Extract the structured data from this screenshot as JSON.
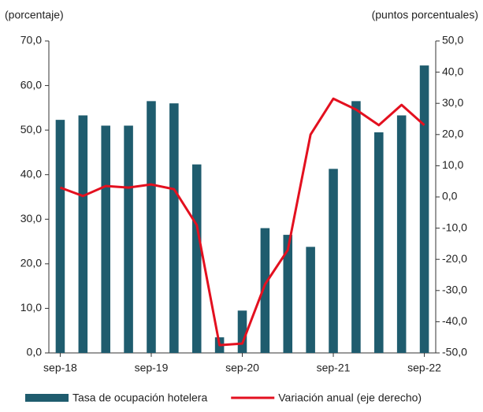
{
  "chart_data": {
    "type": "bar_line",
    "y_label": "(porcentaje)",
    "y2_label": "(puntos porcentuales)",
    "categories": [
      "sep-18",
      null,
      null,
      null,
      "sep-19",
      null,
      null,
      null,
      "sep-20",
      null,
      null,
      null,
      "sep-21",
      null,
      null,
      null,
      "sep-22"
    ],
    "series": [
      {
        "name": "Tasa de ocupación hotelera",
        "type": "bar",
        "color": "#1f5c6e",
        "values": [
          52.3,
          53.3,
          51.0,
          51.0,
          56.5,
          56.0,
          42.3,
          3.5,
          9.5,
          28.0,
          26.5,
          23.8,
          41.3,
          56.5,
          49.5,
          53.3,
          64.5
        ]
      },
      {
        "name": "Variación anual (eje derecho)",
        "type": "line",
        "axis": "y2",
        "color": "#e3101f",
        "values": [
          3,
          0.3,
          3.5,
          3,
          4,
          2.5,
          -9,
          -47.5,
          -47,
          -28,
          -17,
          20,
          31.5,
          28,
          23,
          29.5,
          23
        ]
      }
    ],
    "ylim": [
      0,
      70
    ],
    "yticks": [
      {
        "value": 0,
        "label": "0,0"
      },
      {
        "value": 10,
        "label": "10,0"
      },
      {
        "value": 20,
        "label": "20,0"
      },
      {
        "value": 30,
        "label": "30,0"
      },
      {
        "value": 40,
        "label": "40,0"
      },
      {
        "value": 50,
        "label": "50,0"
      },
      {
        "value": 60,
        "label": "60,0"
      },
      {
        "value": 70,
        "label": "70,0"
      }
    ],
    "y2lim": [
      -50,
      50
    ],
    "y2ticks": [
      {
        "value": -50,
        "label": "-50,0"
      },
      {
        "value": -40,
        "label": "-40,0"
      },
      {
        "value": -30,
        "label": "-30,0"
      },
      {
        "value": -20,
        "label": "-20,0"
      },
      {
        "value": -10,
        "label": "-10,0"
      },
      {
        "value": 0,
        "label": "0,0"
      },
      {
        "value": 10,
        "label": "10,0"
      },
      {
        "value": 20,
        "label": "20,0"
      },
      {
        "value": 30,
        "label": "30,0"
      },
      {
        "value": 40,
        "label": "40,0"
      },
      {
        "value": 50,
        "label": "50,0"
      }
    ],
    "grid": false
  }
}
